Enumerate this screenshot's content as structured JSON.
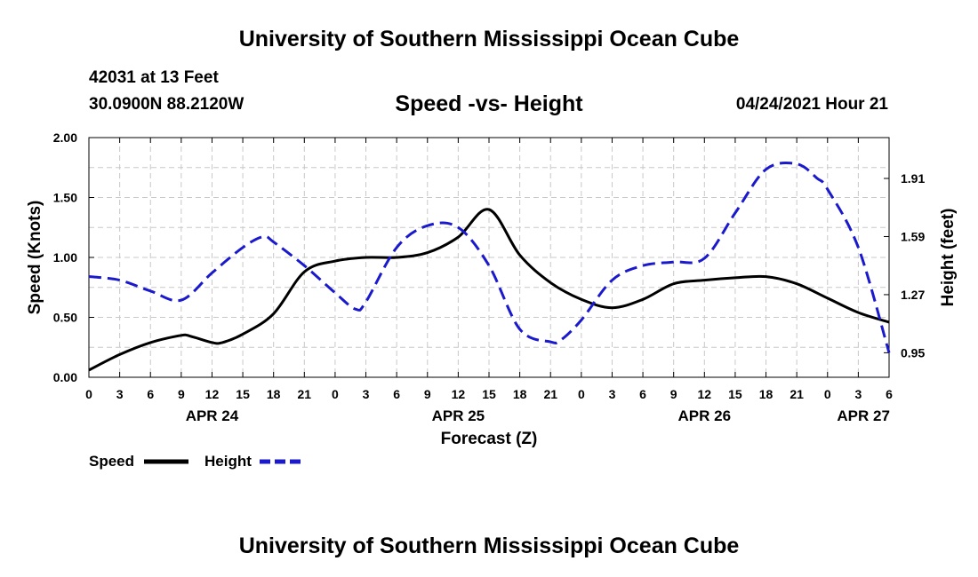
{
  "page": {
    "title_top": "University of Southern Mississippi Ocean Cube",
    "title_bottom": "University of Southern Mississippi Ocean Cube",
    "station_line": "42031 at 13 Feet",
    "coords_line": "30.0900N  88.2120W",
    "date_line": "04/24/2021 Hour 21"
  },
  "legend": {
    "speed_label": "Speed",
    "height_label": "Height"
  },
  "colors": {
    "speed": "#000000",
    "height": "#1a1acc",
    "grid": "#c8c8c8"
  },
  "chart_data": {
    "type": "line",
    "title": "Speed -vs- Height",
    "xlabel": "Forecast (Z)",
    "ylabel": "Speed (Knots)",
    "y2label": "Height (feet)",
    "xlim": [
      0,
      78
    ],
    "ylim": [
      0,
      2
    ],
    "y2lim": [
      0.815,
      2.135
    ],
    "x_ticks": [
      0,
      3,
      6,
      9,
      12,
      15,
      18,
      21,
      24,
      27,
      30,
      33,
      36,
      39,
      42,
      45,
      48,
      51,
      54,
      57,
      60,
      63,
      66,
      69,
      72,
      75,
      78
    ],
    "x_tick_labels": [
      "0",
      "3",
      "6",
      "9",
      "12",
      "15",
      "18",
      "21",
      "0",
      "3",
      "6",
      "9",
      "12",
      "15",
      "18",
      "21",
      "0",
      "3",
      "6",
      "9",
      "12",
      "15",
      "18",
      "21",
      "0",
      "3",
      "6"
    ],
    "date_labels": [
      {
        "x": 12,
        "label": "APR 24"
      },
      {
        "x": 36,
        "label": "APR 25"
      },
      {
        "x": 60,
        "label": "APR 26"
      },
      {
        "x": 75.5,
        "label": "APR 27"
      }
    ],
    "y_ticks": [
      0,
      0.5,
      1.0,
      1.5,
      2.0
    ],
    "y_tick_labels": [
      "0.00",
      "0.50",
      "1.00",
      "1.50",
      "2.00"
    ],
    "y2_ticks": [
      0.95,
      1.27,
      1.59,
      1.91
    ],
    "y2_tick_labels": [
      "0.95",
      "1.27",
      "1.59",
      "1.91"
    ],
    "grid": true,
    "series": [
      {
        "name": "Speed",
        "axis": "left",
        "style": "solid",
        "x": [
          0,
          3,
          6,
          9,
          10,
          12,
          13,
          15,
          18,
          21,
          24,
          27,
          30,
          33,
          36,
          39,
          42,
          45,
          48,
          51,
          54,
          57,
          60,
          63,
          66,
          69,
          72,
          75,
          78
        ],
        "values": [
          0.06,
          0.19,
          0.29,
          0.35,
          0.34,
          0.29,
          0.29,
          0.36,
          0.53,
          0.88,
          0.97,
          1.0,
          1.0,
          1.04,
          1.17,
          1.4,
          1.02,
          0.79,
          0.65,
          0.58,
          0.65,
          0.78,
          0.81,
          0.83,
          0.84,
          0.78,
          0.66,
          0.54,
          0.46
        ]
      },
      {
        "name": "Height",
        "axis": "right",
        "style": "dashed",
        "x": [
          0,
          3,
          6,
          9,
          12,
          15,
          17,
          18,
          21,
          24,
          26,
          27,
          30,
          33,
          36,
          39,
          42,
          45,
          46,
          48,
          51,
          54,
          57,
          60,
          63,
          66,
          69,
          71,
          72,
          75,
          78
        ],
        "values": [
          1.37,
          1.35,
          1.29,
          1.24,
          1.39,
          1.53,
          1.59,
          1.56,
          1.43,
          1.28,
          1.19,
          1.23,
          1.53,
          1.65,
          1.64,
          1.43,
          1.08,
          1.01,
          1.02,
          1.13,
          1.35,
          1.43,
          1.45,
          1.47,
          1.72,
          1.96,
          1.99,
          1.91,
          1.85,
          1.53,
          0.95
        ]
      }
    ]
  }
}
